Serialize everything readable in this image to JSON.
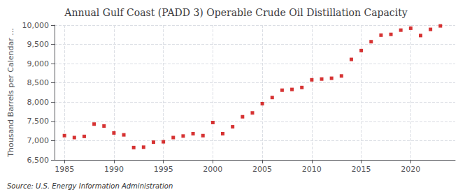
{
  "chart_data": {
    "type": "scatter",
    "title": "Annual Gulf Coast (PADD 3) Operable Crude Oil Distillation Capacity",
    "ylabel": "Thousand Barrels per Calendar ...",
    "annotations": [
      "Source: U.S. Energy Information Administration"
    ],
    "x": [
      1985,
      1986,
      1987,
      1988,
      1989,
      1990,
      1991,
      1992,
      1993,
      1994,
      1995,
      1996,
      1997,
      1998,
      1999,
      2000,
      2001,
      2002,
      2003,
      2004,
      2005,
      2006,
      2007,
      2008,
      2009,
      2010,
      2011,
      2012,
      2013,
      2014,
      2015,
      2016,
      2017,
      2018,
      2019,
      2020,
      2021,
      2022,
      2023
    ],
    "values": [
      7130,
      7080,
      7110,
      7430,
      7380,
      7200,
      7150,
      6820,
      6830,
      6960,
      6970,
      7080,
      7120,
      7180,
      7130,
      7470,
      7180,
      7360,
      7620,
      7720,
      7960,
      8120,
      8310,
      8330,
      8380,
      8580,
      8600,
      8620,
      8680,
      9110,
      9340,
      9570,
      9740,
      9760,
      9870,
      9920,
      9730,
      9890,
      9980
    ],
    "color": "#cc0000",
    "marker": "square",
    "xlim": [
      1984,
      2024.5
    ],
    "xticks": [
      1985,
      1990,
      1995,
      2000,
      2005,
      2010,
      2015,
      2020
    ],
    "ylim": [
      6500,
      10000
    ],
    "yticks": [
      {
        "value": 6500,
        "label": "6,500"
      },
      {
        "value": 7000,
        "label": "7,000"
      },
      {
        "value": 7500,
        "label": "7,500"
      },
      {
        "value": 8000,
        "label": "8,000"
      },
      {
        "value": 8500,
        "label": "8,500"
      },
      {
        "value": 9000,
        "label": "9,000"
      },
      {
        "value": 9500,
        "label": "9,500"
      },
      {
        "value": 10000,
        "label": "10,000"
      }
    ],
    "grid": true
  }
}
